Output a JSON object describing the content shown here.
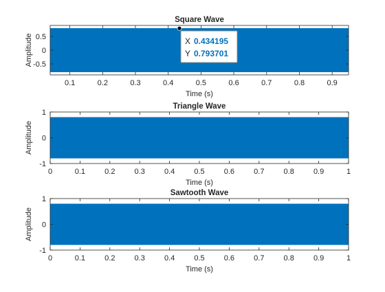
{
  "chart_data": [
    {
      "type": "line",
      "title": "Square Wave",
      "xlabel": "Time (s)",
      "ylabel": "Amplitude",
      "xlim": [
        0.04,
        0.95
      ],
      "ylim": [
        -0.9,
        0.9
      ],
      "xticks": [
        0.1,
        0.2,
        0.3,
        0.4,
        0.5,
        0.6,
        0.7,
        0.8,
        0.9
      ],
      "xticklabels": [
        "0.1",
        "0.2",
        "0.3",
        "0.4",
        "0.5",
        "0.6",
        "0.7",
        "0.8",
        "0.9"
      ],
      "yticks": [
        -0.5,
        0,
        0.5
      ],
      "yticklabels": [
        "-0.5",
        "0",
        "0.5"
      ],
      "series": [
        {
          "color": "#0072bd",
          "band": [
            -0.8,
            0.8
          ],
          "x_extent": [
            0.04,
            0.95
          ]
        }
      ],
      "datatip": {
        "x_label": "X",
        "x_value": "0.434195",
        "y_label": "Y",
        "y_value": "0.793701",
        "x": 0.434195,
        "y": 0.793701
      }
    },
    {
      "type": "line",
      "title": "Triangle Wave",
      "xlabel": "Time (s)",
      "ylabel": "Amplitude",
      "xlim": [
        0,
        1
      ],
      "ylim": [
        -1,
        1
      ],
      "xticks": [
        0,
        0.1,
        0.2,
        0.3,
        0.4,
        0.5,
        0.6,
        0.7,
        0.8,
        0.9,
        1
      ],
      "xticklabels": [
        "0",
        "0.1",
        "0.2",
        "0.3",
        "0.4",
        "0.5",
        "0.6",
        "0.7",
        "0.8",
        "0.9",
        "1"
      ],
      "yticks": [
        -1,
        0,
        1
      ],
      "yticklabels": [
        "-1",
        "0",
        "1"
      ],
      "series": [
        {
          "color": "#0072bd",
          "band": [
            -0.8,
            0.8
          ],
          "x_extent": [
            0,
            1
          ]
        }
      ]
    },
    {
      "type": "line",
      "title": "Sawtooth Wave",
      "xlabel": "Time (s)",
      "ylabel": "Amplitude",
      "xlim": [
        0,
        1
      ],
      "ylim": [
        -1,
        1
      ],
      "xticks": [
        0,
        0.1,
        0.2,
        0.3,
        0.4,
        0.5,
        0.6,
        0.7,
        0.8,
        0.9,
        1
      ],
      "xticklabels": [
        "0",
        "0.1",
        "0.2",
        "0.3",
        "0.4",
        "0.5",
        "0.6",
        "0.7",
        "0.8",
        "0.9",
        "1"
      ],
      "yticks": [
        -1,
        0,
        1
      ],
      "yticklabels": [
        "-1",
        "0",
        "1"
      ],
      "series": [
        {
          "color": "#0072bd",
          "band": [
            -0.8,
            0.8
          ],
          "x_extent": [
            0,
            1
          ]
        }
      ]
    }
  ]
}
